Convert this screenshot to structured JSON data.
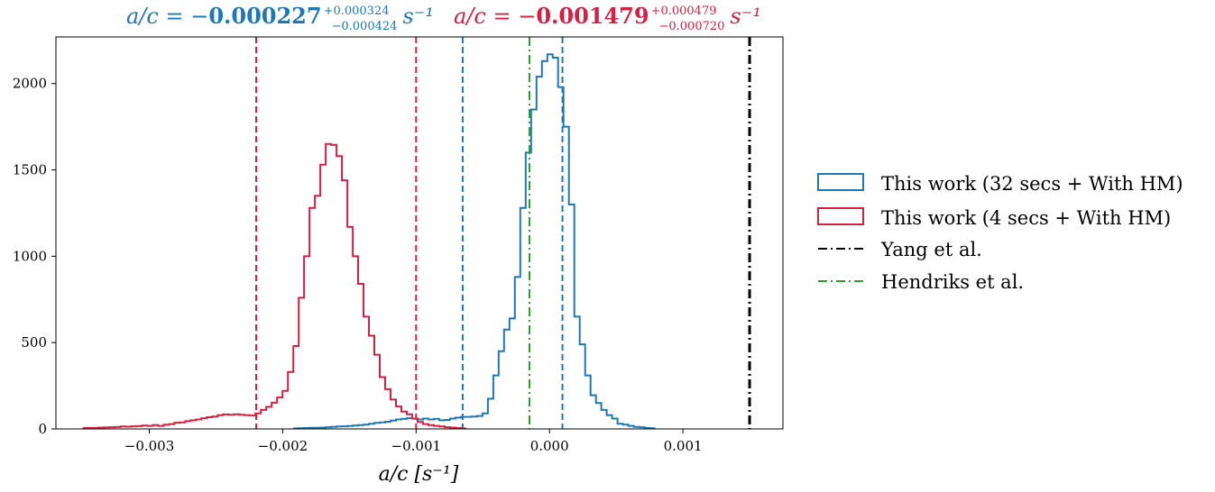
{
  "chart_data": {
    "type": "histogram",
    "xlabel": "a/c [s⁻¹]",
    "ylabel": "",
    "xlim": [
      -0.0037,
      0.00175
    ],
    "ylim": [
      0,
      2270
    ],
    "x_ticks": [
      -0.003,
      -0.002,
      -0.001,
      0.0,
      0.001
    ],
    "x_tick_labels": [
      "−0.003",
      "−0.002",
      "−0.001",
      "0.000",
      "0.001"
    ],
    "y_ticks": [
      0,
      500,
      1000,
      1500,
      2000
    ],
    "y_tick_labels": [
      "0",
      "500",
      "1000",
      "1500",
      "2000"
    ],
    "grid": false,
    "legend_position": "right",
    "annotations": [
      {
        "prefix": "a/c = −",
        "value": "0.000227",
        "sup": "+0.000324",
        "sub": "−0.000424",
        "suffix": "s⁻¹",
        "color": "#1f77b4"
      },
      {
        "prefix": "a/c = −",
        "value": "0.001479",
        "sup": "+0.000479",
        "sub": "−0.000720",
        "suffix": "s⁻¹",
        "color": "#d62043"
      }
    ],
    "series": [
      {
        "name": "This work (32 secs + With HM)",
        "style": "step",
        "color": "#1f77b4",
        "x_start": -0.00192,
        "bin_width": 4.05e-05,
        "values": [
          3,
          4,
          5,
          7,
          7,
          8,
          10,
          12,
          14,
          15,
          17,
          20,
          22,
          25,
          30,
          35,
          38,
          42,
          48,
          55,
          58,
          62,
          60,
          55,
          60,
          55,
          58,
          50,
          52,
          60,
          65,
          70,
          70,
          72,
          75,
          90,
          175,
          310,
          450,
          575,
          640,
          880,
          1280,
          1600,
          1850,
          2040,
          2130,
          2170,
          2150,
          1980,
          1750,
          1300,
          650,
          490,
          310,
          195,
          150,
          110,
          80,
          60,
          30,
          25,
          18,
          12,
          10,
          6,
          4
        ],
        "median": -0.000227,
        "lower": -0.000651,
        "upper": 9.7e-05
      },
      {
        "name": "This work (4 secs + With HM)",
        "style": "step",
        "color": "#d62043",
        "x_start": -0.0035,
        "bin_width": 4.05e-05,
        "values": [
          5,
          6,
          6,
          8,
          9,
          10,
          11,
          14,
          13,
          15,
          16,
          20,
          18,
          22,
          18,
          24,
          28,
          36,
          38,
          45,
          50,
          55,
          62,
          68,
          72,
          80,
          84,
          82,
          85,
          82,
          80,
          78,
          90,
          110,
          128,
          152,
          182,
          220,
          330,
          480,
          760,
          1000,
          1280,
          1350,
          1530,
          1650,
          1645,
          1580,
          1440,
          1170,
          1000,
          840,
          650,
          540,
          430,
          300,
          230,
          170,
          130,
          100,
          85,
          60,
          40,
          28,
          22,
          18,
          14,
          10,
          8,
          6,
          3
        ],
        "median": -0.001479,
        "lower": -0.002199,
        "upper": -0.001
      },
      {
        "name": "Yang et al.",
        "style": "vline-dashdot",
        "color": "#000000",
        "x": 0.0015
      },
      {
        "name": "Hendriks et al.",
        "style": "vline-dashdot",
        "color": "#2ca02c",
        "x": -0.00015
      }
    ]
  }
}
